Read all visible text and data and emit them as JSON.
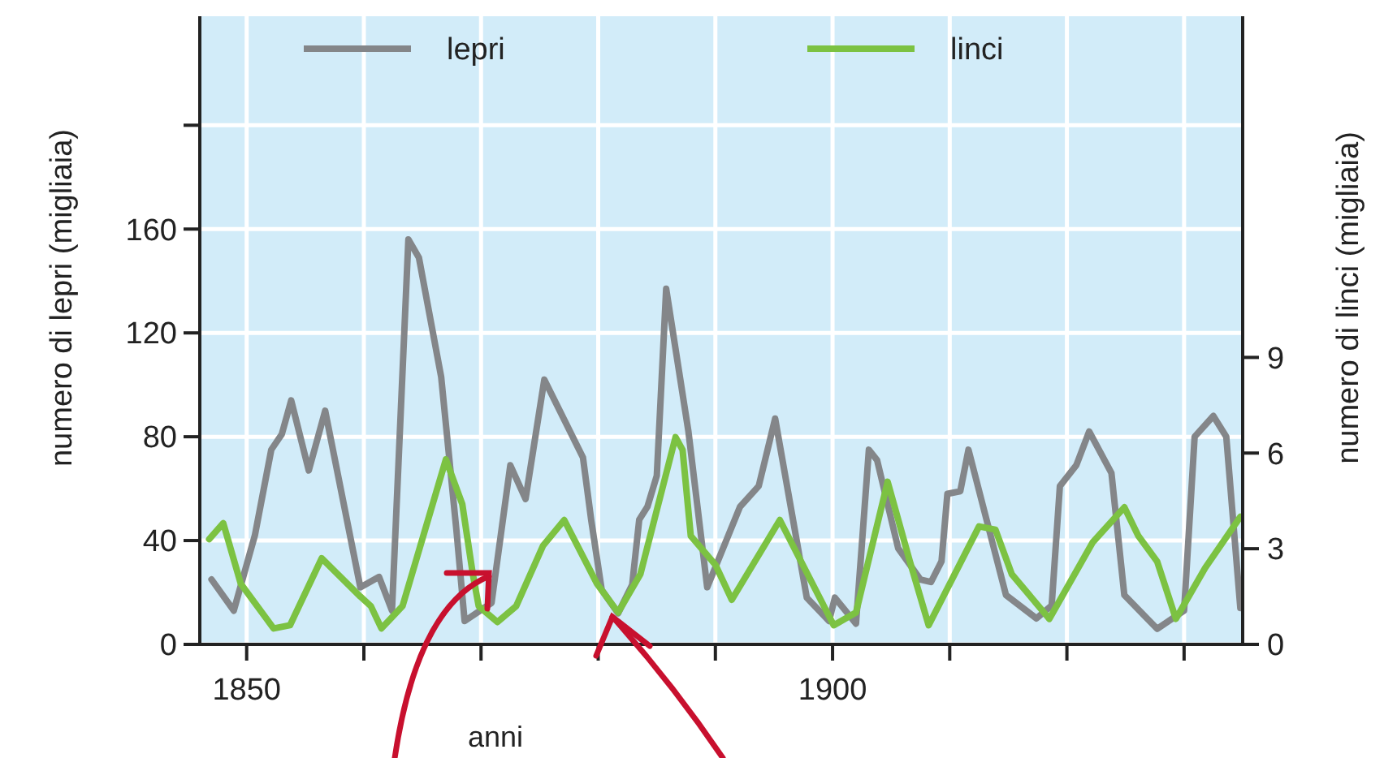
{
  "chart_data": {
    "type": "line",
    "xlabel": "anni",
    "ylabel": "numero di lepri (migliaia)",
    "y2label": "numero di linci (migliaia)",
    "xlim": [
      1846,
      1935
    ],
    "xticks": [
      {
        "value": 1850,
        "label": "1850"
      },
      {
        "value": 1860,
        "label": null
      },
      {
        "value": 1870,
        "label": null
      },
      {
        "value": 1880,
        "label": null
      },
      {
        "value": 1890,
        "label": null
      },
      {
        "value": 1900,
        "label": "1900"
      },
      {
        "value": 1910,
        "label": null
      },
      {
        "value": 1920,
        "label": null
      },
      {
        "value": 1930,
        "label": null
      }
    ],
    "ylim": [
      0,
      242
    ],
    "yticks": [
      0,
      40,
      80,
      120,
      160,
      {
        "value": 200,
        "label": null
      }
    ],
    "y2lim": [
      0,
      19.7
    ],
    "y2ticks": [
      0,
      3,
      6,
      9
    ],
    "grid": true,
    "legend": "top",
    "marker": "none",
    "line_style": "solid",
    "series": [
      {
        "name": "lepri",
        "color": "#848689",
        "x": [
          1847.0,
          1848.9,
          1850.7,
          1852.1,
          1853.0,
          1853.8,
          1855.3,
          1856.7,
          1859.7,
          1861.3,
          1862.4,
          1863.8,
          1864.7,
          1866.6,
          1867.9,
          1868.6,
          1870.9,
          1872.5,
          1873.8,
          1875.4,
          1878.7,
          1879.4,
          1880.3,
          1881.7,
          1882.9,
          1883.5,
          1884.2,
          1885.0,
          1885.8,
          1887.7,
          1889.3,
          1892.1,
          1893.7,
          1895.1,
          1897.8,
          1899.7,
          1900.2,
          1902.0,
          1903.1,
          1903.8,
          1905.6,
          1907.5,
          1908.4,
          1909.3,
          1909.8,
          1910.9,
          1911.6,
          1914.8,
          1917.4,
          1918.7,
          1919.4,
          1920.8,
          1921.9,
          1923.8,
          1924.9,
          1927.7,
          1930.0,
          1930.9,
          1932.5,
          1933.6,
          1934.8
        ],
        "values": [
          25,
          13,
          42,
          75,
          81,
          94,
          67,
          90,
          22,
          26,
          13,
          156,
          149,
          103,
          44,
          9,
          16,
          69,
          56,
          102,
          72,
          48,
          21,
          12,
          23,
          48,
          53,
          65,
          137,
          82,
          22,
          53,
          61,
          87,
          18,
          9,
          18,
          8,
          75,
          71,
          37,
          25,
          24,
          32,
          58,
          59,
          75,
          19,
          10,
          15,
          61,
          69,
          82,
          66,
          19,
          6,
          13,
          80,
          88,
          80,
          14
        ]
      },
      {
        "name": "linci",
        "color": "#7cc242",
        "axis": "y2",
        "x": [
          1846.8,
          1848.0,
          1849.5,
          1852.3,
          1853.7,
          1856.4,
          1859.7,
          1860.6,
          1861.5,
          1863.3,
          1867.0,
          1868.4,
          1869.3,
          1869.8,
          1871.4,
          1873.0,
          1875.3,
          1877.1,
          1879.9,
          1881.7,
          1883.6,
          1886.6,
          1887.2,
          1887.9,
          1890.0,
          1891.4,
          1895.5,
          1900.1,
          1902.0,
          1904.7,
          1906.6,
          1908.2,
          1912.5,
          1913.9,
          1915.3,
          1918.5,
          1922.2,
          1924.9,
          1926.1,
          1927.7,
          1929.3,
          1931.8,
          1934.8
        ],
        "values": [
          3.3,
          3.8,
          1.9,
          0.5,
          0.6,
          2.7,
          1.5,
          1.2,
          0.5,
          1.2,
          5.8,
          4.4,
          2.2,
          1.2,
          0.7,
          1.2,
          3.1,
          3.9,
          1.9,
          1.0,
          2.2,
          6.5,
          6.1,
          3.4,
          2.5,
          1.4,
          3.9,
          0.6,
          1.0,
          5.1,
          2.6,
          0.6,
          3.7,
          3.6,
          2.2,
          0.8,
          3.2,
          4.3,
          3.4,
          2.6,
          0.8,
          2.4,
          4.0
        ]
      }
    ]
  }
}
